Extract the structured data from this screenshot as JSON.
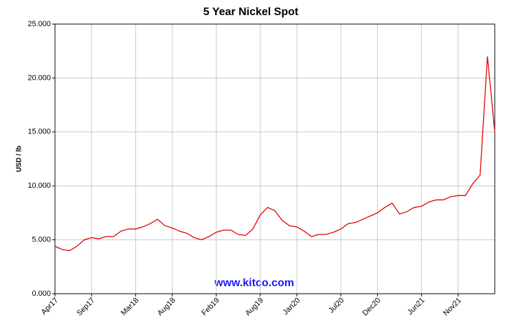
{
  "chart_data": {
    "type": "line",
    "title": "5 Year Nickel Spot",
    "y_label": "USD / lb",
    "annotation": "www.kitco.com",
    "categories": [
      "Apr17",
      null,
      null,
      null,
      null,
      "Sep17",
      null,
      null,
      null,
      null,
      null,
      "Mar18",
      null,
      null,
      null,
      null,
      "Aug18",
      null,
      null,
      null,
      null,
      null,
      "Feb19",
      null,
      null,
      null,
      null,
      null,
      "Aug19",
      null,
      null,
      null,
      null,
      "Jan20",
      null,
      null,
      null,
      null,
      null,
      "Jul20",
      null,
      null,
      null,
      null,
      "Dec20",
      null,
      null,
      null,
      null,
      null,
      "Jun21",
      null,
      null,
      null,
      null,
      "Nov21",
      null,
      null,
      null,
      null,
      null
    ],
    "series": [
      {
        "name": "Nickel",
        "color": "#e00000",
        "values": [
          4.4,
          4.1,
          4.0,
          4.4,
          5.0,
          5.2,
          5.1,
          5.3,
          5.3,
          5.8,
          6.0,
          6.0,
          6.2,
          6.5,
          6.9,
          6.3,
          6.1,
          5.8,
          5.6,
          5.2,
          5.0,
          5.3,
          5.7,
          5.9,
          5.9,
          5.5,
          5.4,
          6.0,
          7.3,
          8.0,
          7.7,
          6.8,
          6.3,
          6.2,
          5.8,
          5.3,
          5.5,
          5.5,
          5.7,
          6.0,
          6.5,
          6.6,
          6.9,
          7.2,
          7.5,
          8.0,
          8.4,
          7.4,
          7.6,
          8.0,
          8.1,
          8.5,
          8.7,
          8.7,
          9.0,
          9.1,
          9.1,
          10.2,
          11.0,
          22.0,
          15.0
        ]
      }
    ],
    "ylim": [
      0,
      25
    ],
    "yticks": [
      {
        "value": 0,
        "label": "0.000"
      },
      {
        "value": 5,
        "label": "5.000"
      },
      {
        "value": 10,
        "label": "10.000"
      },
      {
        "value": 15,
        "label": "15.000"
      },
      {
        "value": 20,
        "label": "20.000"
      },
      {
        "value": 25,
        "label": "25.000"
      }
    ],
    "grid": true
  }
}
